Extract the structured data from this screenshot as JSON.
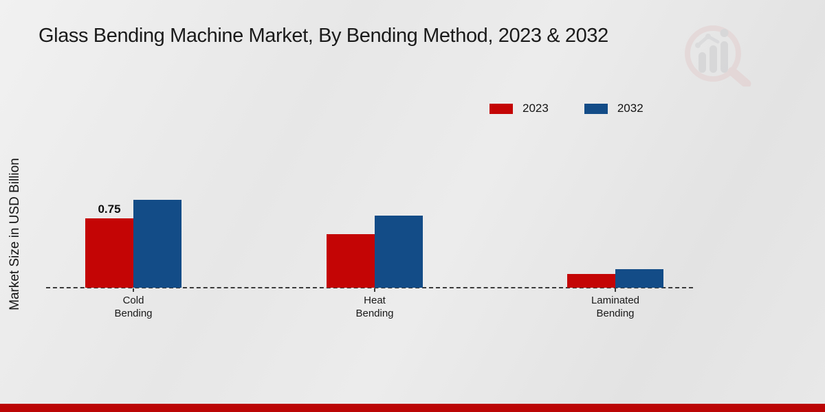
{
  "title": "Glass Bending Machine Market, By Bending Method, 2023 & 2032",
  "y_axis_label": "Market Size in USD Billion",
  "legend": {
    "position": "top-right",
    "items": [
      {
        "label": "2023",
        "color": "#c40505"
      },
      {
        "label": "2032",
        "color": "#134c87"
      }
    ]
  },
  "footer": {
    "band_color": "#bb0505"
  },
  "watermark": {
    "name": "magnifier-bar-chart-logo"
  },
  "chart_data": {
    "type": "bar",
    "title": "Glass Bending Machine Market, By Bending Method, 2023 & 2032",
    "ylabel": "Market Size in USD Billion",
    "xlabel": "",
    "categories": [
      "Cold Bending",
      "Heat Bending",
      "Laminated Bending"
    ],
    "series": [
      {
        "name": "2023",
        "color": "#c40505",
        "values": [
          0.75,
          0.58,
          0.15
        ]
      },
      {
        "name": "2032",
        "color": "#134c87",
        "values": [
          0.95,
          0.78,
          0.2
        ]
      }
    ],
    "bar_labels": [
      {
        "series": "2023",
        "category": "Cold Bending",
        "text": "0.75"
      }
    ],
    "ylim": [
      0,
      1.2
    ],
    "grid": false,
    "legend_position": "top-right",
    "baseline_style": "dashed"
  }
}
